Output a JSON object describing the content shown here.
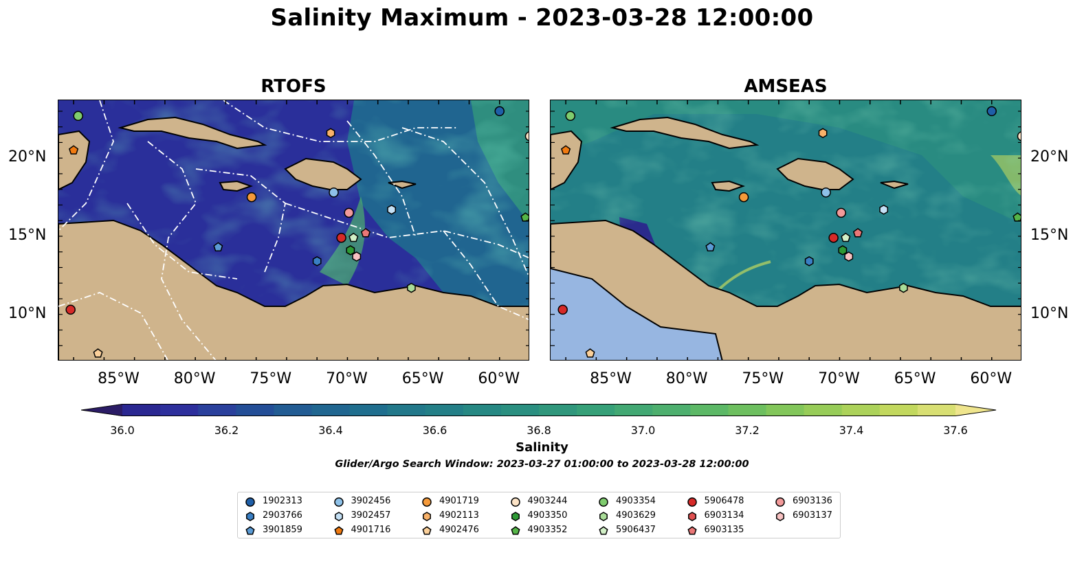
{
  "title": "Salinity Maximum - 2023-03-28 12:00:00",
  "panels": {
    "left": {
      "title": "RTOFS"
    },
    "right": {
      "title": "AMSEAS"
    }
  },
  "map_extent": {
    "lon": [
      -89,
      -58
    ],
    "lat": [
      7,
      23.7
    ]
  },
  "longitude_labels": [
    {
      "lon": -85,
      "text": "85°W"
    },
    {
      "lon": -80,
      "text": "80°W"
    },
    {
      "lon": -75,
      "text": "75°W"
    },
    {
      "lon": -70,
      "text": "70°W"
    },
    {
      "lon": -65,
      "text": "65°W"
    },
    {
      "lon": -60,
      "text": "60°W"
    }
  ],
  "latitude_labels": [
    {
      "lat": 20,
      "text": "20°N"
    },
    {
      "lat": 15,
      "text": "15°N"
    },
    {
      "lat": 10,
      "text": "10°N"
    }
  ],
  "colors": {
    "land": "#cfb48c",
    "water_land": "#97b6e1",
    "river": "#8fb3e0",
    "salinity_palette": [
      "#2b1c66",
      "#2a2a8c",
      "#2a4397",
      "#225c93",
      "#1f6e8e",
      "#237f87",
      "#2a8f80",
      "#36a078",
      "#4daf6e",
      "#6dbf5f",
      "#97cc58",
      "#c2d85e",
      "#efe58d"
    ]
  },
  "colorbar": {
    "label": "Salinity",
    "min": 36.0,
    "max": 37.6,
    "ticks": [
      "36.0",
      "36.2",
      "36.4",
      "36.6",
      "36.8",
      "37.0",
      "37.2",
      "37.4",
      "37.6"
    ],
    "colors": [
      "#2b1c66",
      "#2a2791",
      "#2d2f9c",
      "#2a409c",
      "#234e97",
      "#225c93",
      "#206690",
      "#1f6e8e",
      "#22788a",
      "#237f87",
      "#268883",
      "#2a8f80",
      "#30977c",
      "#36a078",
      "#42a873",
      "#4daf6e",
      "#5cb866",
      "#6dbf5f",
      "#82c65a",
      "#97cc58",
      "#acd25a",
      "#c2d85e",
      "#d8df73",
      "#efe58d"
    ]
  },
  "search_window": "Glider/Argo Search Window: 2023-03-27 01:00:00 to 2023-03-28 12:00:00",
  "legend": [
    {
      "id": "1902313",
      "marker": "circle",
      "color": "#1f5fa8"
    },
    {
      "id": "2903766",
      "marker": "hexagon",
      "color": "#3a7fc4"
    },
    {
      "id": "3901859",
      "marker": "pentagon",
      "color": "#5b9bd5"
    },
    {
      "id": "3902456",
      "marker": "circle",
      "color": "#8ec1e8"
    },
    {
      "id": "3902457",
      "marker": "hexagon",
      "color": "#c4e0f5"
    },
    {
      "id": "4901716",
      "marker": "pentagon",
      "color": "#f07a10"
    },
    {
      "id": "4901719",
      "marker": "circle",
      "color": "#f59a3a"
    },
    {
      "id": "4902113",
      "marker": "hexagon",
      "color": "#f8b26a"
    },
    {
      "id": "4902476",
      "marker": "pentagon",
      "color": "#fbd09a"
    },
    {
      "id": "4903244",
      "marker": "circle",
      "color": "#fce3c6"
    },
    {
      "id": "4903350",
      "marker": "hexagon",
      "color": "#2e9a35"
    },
    {
      "id": "4903352",
      "marker": "pentagon",
      "color": "#55b548"
    },
    {
      "id": "4903354",
      "marker": "circle",
      "color": "#7fcc6e"
    },
    {
      "id": "4903629",
      "marker": "hexagon",
      "color": "#a9dc98"
    },
    {
      "id": "5906437",
      "marker": "pentagon",
      "color": "#d2f0c7"
    },
    {
      "id": "5906478",
      "marker": "circle",
      "color": "#d62a28"
    },
    {
      "id": "6903134",
      "marker": "hexagon",
      "color": "#e05050"
    },
    {
      "id": "6903135",
      "marker": "pentagon",
      "color": "#ea7777"
    },
    {
      "id": "6903136",
      "marker": "circle",
      "color": "#f29a9a"
    },
    {
      "id": "6903137",
      "marker": "hexagon",
      "color": "#f8c2c2"
    }
  ],
  "floats": [
    {
      "id": "1902313",
      "lon": -60.0,
      "lat": 23.0
    },
    {
      "id": "4903244",
      "lon": -58.0,
      "lat": 21.4
    },
    {
      "id": "4903354",
      "lon": -87.7,
      "lat": 22.7
    },
    {
      "id": "4901716",
      "lon": -88.0,
      "lat": 20.5
    },
    {
      "id": "4902113",
      "lon": -71.1,
      "lat": 21.6
    },
    {
      "id": "4901719",
      "lon": -76.3,
      "lat": 17.5
    },
    {
      "id": "3902456",
      "lon": -70.9,
      "lat": 17.8
    },
    {
      "id": "3902457",
      "lon": -67.1,
      "lat": 16.7
    },
    {
      "id": "6903136",
      "lon": -69.9,
      "lat": 16.5
    },
    {
      "id": "4903352",
      "lon": -58.3,
      "lat": 16.2
    },
    {
      "id": "6903135",
      "lon": -68.8,
      "lat": 15.2
    },
    {
      "id": "5906478",
      "lon": -70.4,
      "lat": 14.9
    },
    {
      "id": "5906437",
      "lon": -69.6,
      "lat": 14.9
    },
    {
      "id": "3901859",
      "lon": -78.5,
      "lat": 14.3
    },
    {
      "id": "4903350",
      "lon": -69.8,
      "lat": 14.1
    },
    {
      "id": "6903137",
      "lon": -69.4,
      "lat": 13.7
    },
    {
      "id": "2903766",
      "lon": -72.0,
      "lat": 13.4
    },
    {
      "id": "4903629",
      "lon": -65.8,
      "lat": 11.7
    },
    {
      "id": "5906478",
      "lon": -88.2,
      "lat": 10.3
    },
    {
      "id": "4902476",
      "lon": -86.4,
      "lat": 7.5
    }
  ]
}
